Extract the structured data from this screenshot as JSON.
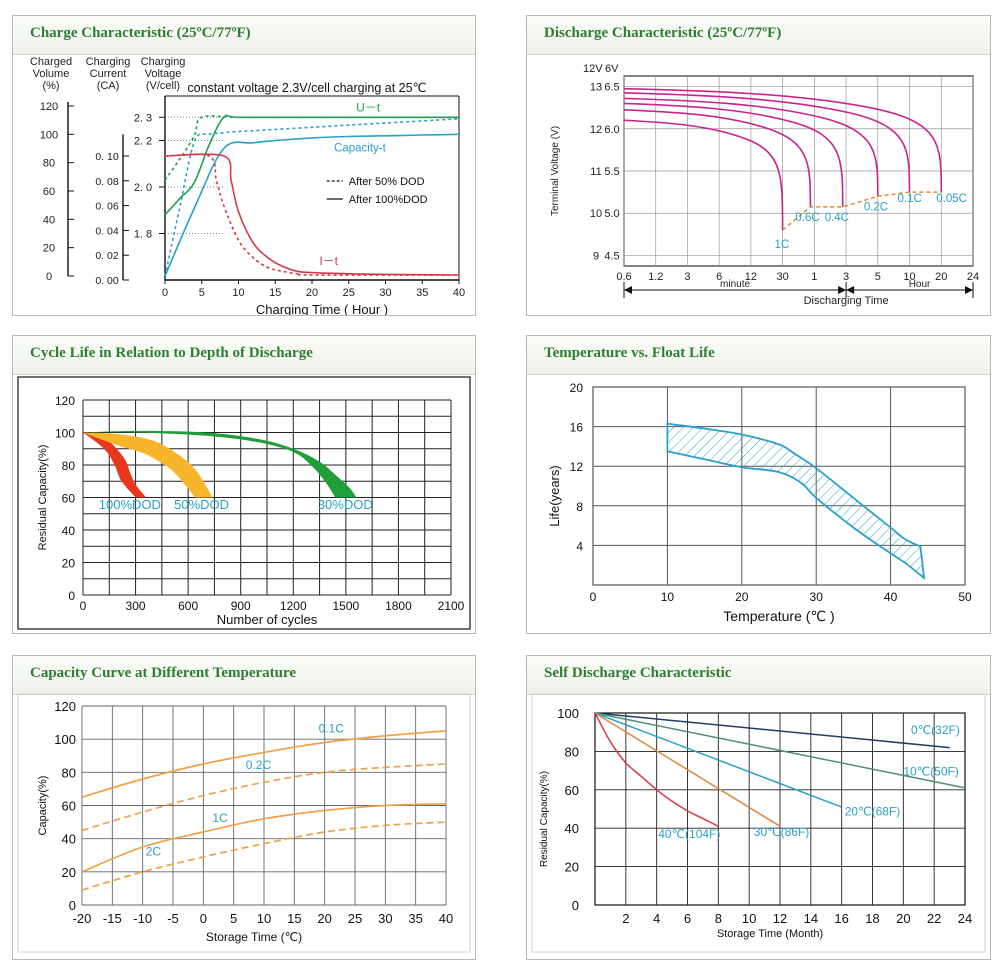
{
  "colors": {
    "title": "#2e7d32",
    "magenta": "#c8238f",
    "orange": "#f0a14b",
    "orange_dark": "#e58a2c",
    "teal": "#2aa1c9",
    "green": "#1f9e57",
    "red": "#d6384b"
  },
  "panels": {
    "charge": {
      "title": "Charge Characteristic (25ºC/77ºF)"
    },
    "discharge": {
      "title": "Discharge Characteristic (25ºC/77ºF)"
    },
    "cycle": {
      "title": "Cycle Life in Relation to Depth of Discharge"
    },
    "float": {
      "title": "Temperature vs. Float Life"
    },
    "capacity": {
      "title": "Capacity Curve at Different Temperature"
    },
    "selfdis": {
      "title": "Self Discharge Characteristic"
    }
  },
  "chart_data": [
    {
      "id": "charge",
      "type": "line",
      "title": "Charge Characteristic (25ºC/77ºF)",
      "annotation": "constant voltage 2.3V/cell charging at 25℃",
      "xlabel": "Charging Time ( Hour )",
      "x_ticks": [
        "0",
        "5",
        "10",
        "15",
        "20",
        "25",
        "30",
        "35",
        "40"
      ],
      "axis_headers": [
        [
          "Charged",
          "Volume",
          "(%)"
        ],
        [
          "Charging",
          "Current",
          "(CA)"
        ],
        [
          "Charging",
          "Voltage",
          "(V/cell)"
        ]
      ],
      "volume_ticks": [
        "120",
        "100",
        "80",
        "60",
        "40",
        "20",
        "0"
      ],
      "current_ticks": [
        "0. 10",
        "0. 08",
        "0. 06",
        "0. 04",
        "0. 02",
        "0. 00"
      ],
      "voltage_ticks": [
        "2. 3",
        "2. 2",
        "2. 0",
        "1. 8"
      ],
      "curve_labels": [
        "U－t",
        "Capacity-t",
        "I－t"
      ],
      "legend": [
        "After 50% DOD",
        "After 100%DOD"
      ],
      "series": [
        {
          "name": "U-t After 100%DOD",
          "axis": "voltage",
          "x": [
            0,
            2,
            4,
            6,
            8,
            10,
            20,
            30,
            40
          ],
          "y": [
            1.88,
            1.95,
            2.02,
            2.18,
            2.3,
            2.3,
            2.3,
            2.3,
            2.3
          ]
        },
        {
          "name": "U-t After 50% DOD",
          "axis": "voltage",
          "x": [
            0,
            2,
            4,
            5,
            10,
            20,
            30,
            40
          ],
          "y": [
            2.03,
            2.12,
            2.22,
            2.3,
            2.3,
            2.3,
            2.3,
            2.3
          ]
        },
        {
          "name": "Capacity-t After 100%DOD",
          "axis": "volume",
          "x": [
            0,
            4,
            8,
            12,
            16,
            20,
            25,
            30,
            35,
            40
          ],
          "y": [
            0,
            48,
            90,
            94,
            96,
            97.5,
            98.5,
            99,
            99.5,
            100
          ]
        },
        {
          "name": "Capacity-t After 50% DOD",
          "axis": "volume",
          "x": [
            0,
            2,
            4,
            6,
            8,
            10,
            20,
            30,
            40
          ],
          "y": [
            0,
            48,
            95,
            100,
            101,
            102,
            105,
            108,
            111
          ]
        },
        {
          "name": "I-t After 100%DOD",
          "axis": "current",
          "x": [
            0,
            8,
            9,
            10,
            12,
            14,
            16,
            18,
            20,
            25,
            30,
            40
          ],
          "y": [
            0.1,
            0.1,
            0.08,
            0.055,
            0.03,
            0.018,
            0.011,
            0.007,
            0.006,
            0.005,
            0.0045,
            0.004
          ]
        },
        {
          "name": "I-t After 50% DOD",
          "axis": "current",
          "x": [
            0,
            6,
            7,
            8,
            10,
            12,
            14,
            16,
            18,
            20,
            40
          ],
          "y": [
            0.1,
            0.1,
            0.08,
            0.06,
            0.032,
            0.018,
            0.01,
            0.007,
            0.005,
            0.004,
            0.004
          ]
        }
      ]
    },
    {
      "id": "discharge",
      "type": "line",
      "title": "Discharge Characteristic (25ºC/77ºF)",
      "ylabel": "Terminal Voltage (V)",
      "xlabel": "Discharging Time",
      "y_header": [
        "12V",
        "6V"
      ],
      "y_ticks_12v": [
        "13",
        "12",
        "11",
        "10",
        "9"
      ],
      "y_ticks_6v": [
        "6.5",
        "6.0",
        "5.5",
        "5.0",
        "4.5"
      ],
      "x_ticks": [
        "0.6",
        "1.2",
        "3",
        "6",
        "12",
        "30",
        "1",
        "3",
        "5",
        "10",
        "20",
        "24"
      ],
      "x_groups": [
        "minute",
        "Hour"
      ],
      "rates": [
        "1C",
        "0.6C",
        "0.4C",
        "0.2C",
        "0.1C",
        "0.05C"
      ],
      "series": [
        {
          "name": "1C",
          "start_v": 12.2,
          "end_time_min": 30,
          "end_v": 9.6
        },
        {
          "name": "0.6C",
          "start_v": 12.45,
          "end_time_min": 55,
          "end_v": 10.15
        },
        {
          "name": "0.4C",
          "start_v": 12.6,
          "end_time_min": 160,
          "end_v": 10.15
        },
        {
          "name": "0.2C",
          "start_v": 12.72,
          "end_time_min": 300,
          "end_v": 10.4
        },
        {
          "name": "0.1C",
          "start_v": 12.85,
          "end_time_min": 600,
          "end_v": 10.5
        },
        {
          "name": "0.05C",
          "start_v": 12.95,
          "end_time_min": 1200,
          "end_v": 10.5
        }
      ]
    },
    {
      "id": "cycle",
      "type": "area",
      "title": "Cycle Life in Relation to Depth of Discharge",
      "ylabel": "Residual Capacity(%)",
      "xlabel": "Number of cycles",
      "xlim": [
        0,
        2100
      ],
      "ylim": [
        0,
        120
      ],
      "x_ticks": [
        "0",
        "300",
        "600",
        "900",
        "1200",
        "1500",
        "1800",
        "2100"
      ],
      "y_ticks": [
        "0",
        "20",
        "40",
        "60",
        "80",
        "100",
        "120"
      ],
      "series": [
        {
          "name": "100%DOD",
          "color": "red",
          "upper_x": [
            0,
            120,
            230,
            270,
            300,
            360
          ],
          "upper_y": [
            100,
            97,
            85,
            75,
            68,
            60
          ],
          "lower_x": [
            0,
            120,
            180,
            220,
            300
          ],
          "lower_y": [
            100,
            90,
            80,
            70,
            60
          ]
        },
        {
          "name": "50%DOD",
          "color": "yellow",
          "upper_x": [
            0,
            200,
            400,
            550,
            650,
            740
          ],
          "upper_y": [
            100,
            99,
            95,
            86,
            76,
            60
          ],
          "lower_x": [
            0,
            200,
            350,
            480,
            550,
            640
          ],
          "lower_y": [
            100,
            92,
            87,
            79,
            72,
            60
          ]
        },
        {
          "name": "30%DOD",
          "color": "green",
          "upper_x": [
            0,
            300,
            700,
            1000,
            1200,
            1350,
            1440,
            1520,
            1560
          ],
          "upper_y": [
            100,
            101,
            100,
            96,
            90,
            82,
            74,
            66,
            60
          ],
          "lower_x": [
            0,
            300,
            700,
            1000,
            1200,
            1300,
            1380,
            1440
          ],
          "lower_y": [
            100,
            100,
            98,
            94,
            88,
            80,
            70,
            60
          ]
        }
      ]
    },
    {
      "id": "float",
      "type": "area",
      "title": "Temperature vs. Float Life",
      "ylabel": "Life(years)",
      "xlabel": "Temperature (℃ )",
      "xlim": [
        0,
        50
      ],
      "ylim": [
        0,
        20
      ],
      "x_ticks": [
        "0",
        "10",
        "20",
        "30",
        "40",
        "50"
      ],
      "y_ticks": [
        "4",
        "8",
        "12",
        "16",
        "20"
      ],
      "upper": {
        "x": [
          10,
          15,
          20,
          25,
          27,
          30,
          35,
          40,
          42,
          44
        ],
        "y": [
          16.3,
          15.8,
          15.2,
          14.2,
          13.3,
          11.8,
          8.8,
          5.8,
          4.6,
          3.9
        ]
      },
      "lower": {
        "x": [
          10,
          15,
          20,
          25,
          28,
          30,
          35,
          40,
          42,
          44.5
        ],
        "y": [
          13.5,
          12.7,
          11.9,
          11.4,
          10.3,
          8.8,
          5.8,
          3.2,
          2.2,
          0.7
        ]
      }
    },
    {
      "id": "capacity",
      "type": "line",
      "title": "Capacity Curve at Different Temperature",
      "ylabel": "Capacity(%)",
      "xlabel": "Storage Time (℃)",
      "xlim": [
        -20,
        40
      ],
      "ylim": [
        0,
        120
      ],
      "x_ticks": [
        "-20",
        "-15",
        "-10",
        "-5",
        "0",
        "5",
        "10",
        "15",
        "20",
        "25",
        "30",
        "35",
        "40"
      ],
      "y_ticks": [
        "0",
        "20",
        "40",
        "60",
        "80",
        "100",
        "120"
      ],
      "series": [
        {
          "name": "0.1C",
          "dashed": false,
          "x": [
            -20,
            -10,
            0,
            10,
            20,
            30,
            40
          ],
          "y": [
            65,
            76,
            85,
            92,
            98,
            102,
            105
          ]
        },
        {
          "name": "0.2C",
          "dashed": true,
          "x": [
            -20,
            -10,
            0,
            10,
            20,
            30,
            40
          ],
          "y": [
            45,
            56,
            66,
            74,
            80,
            83,
            85
          ]
        },
        {
          "name": "1C",
          "dashed": false,
          "x": [
            -20,
            -10,
            0,
            10,
            20,
            30,
            40
          ],
          "y": [
            20,
            35,
            44,
            52,
            57,
            60,
            61
          ]
        },
        {
          "name": "2C",
          "dashed": true,
          "x": [
            -20,
            -10,
            0,
            10,
            20,
            30,
            40
          ],
          "y": [
            9,
            20,
            29,
            37,
            44,
            48,
            50
          ]
        }
      ]
    },
    {
      "id": "selfdis",
      "type": "line",
      "title": "Self Discharge Characteristic",
      "ylabel": "Residual Capacity(%)",
      "xlabel": "Storage Time (Month)",
      "xlim": [
        0,
        24
      ],
      "ylim": [
        0,
        100
      ],
      "x_ticks": [
        "2",
        "4",
        "6",
        "8",
        "10",
        "12",
        "14",
        "16",
        "18",
        "20",
        "22",
        "24"
      ],
      "y_ticks": [
        "0",
        "20",
        "40",
        "60",
        "80",
        "100"
      ],
      "series": [
        {
          "name": "0℃(32F)",
          "color": "#1f3d6b",
          "x": [
            0,
            23
          ],
          "y": [
            100,
            82
          ]
        },
        {
          "name": "10℃(50F)",
          "color": "#4f8f74",
          "x": [
            0,
            24
          ],
          "y": [
            100,
            61
          ]
        },
        {
          "name": "20℃(68F)",
          "color": "#2aa1c9",
          "x": [
            0,
            16
          ],
          "y": [
            100,
            51
          ]
        },
        {
          "name": "30℃(86F)",
          "color": "#e2843a",
          "x": [
            0,
            12
          ],
          "y": [
            100,
            41
          ]
        },
        {
          "name": "40℃(104F)",
          "color": "#d6384b",
          "x": [
            0,
            1,
            2,
            3,
            4,
            5,
            6,
            7,
            8
          ],
          "y": [
            100,
            85,
            74,
            67,
            60,
            54,
            49,
            45,
            41
          ]
        }
      ]
    }
  ]
}
